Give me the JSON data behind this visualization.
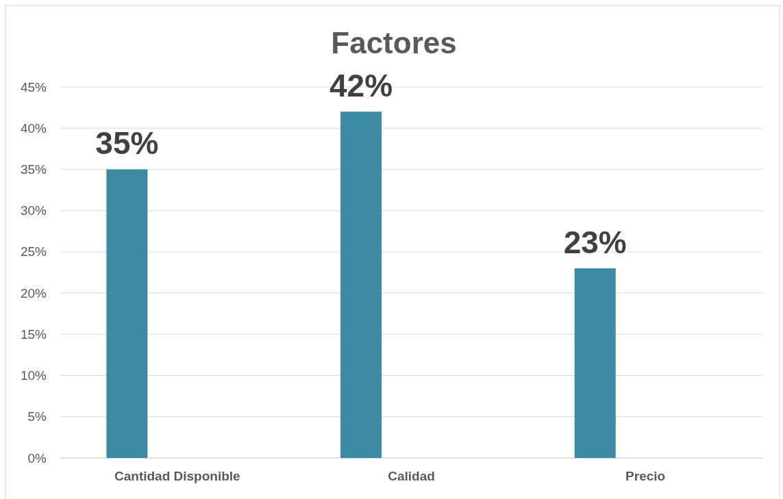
{
  "chart_data": {
    "type": "bar",
    "title": "Factores",
    "categories": [
      "Cantidad Disponible",
      "Calidad",
      "Precio"
    ],
    "values": [
      35,
      42,
      23
    ],
    "color": "#3b8ba5",
    "value_labels": [
      "35%",
      "42%",
      "23%"
    ],
    "ylim": [
      0,
      45
    ],
    "yticks": [
      {
        "value": 0,
        "label": "0%"
      },
      {
        "value": 5,
        "label": "5%"
      },
      {
        "value": 10,
        "label": "10%"
      },
      {
        "value": 15,
        "label": "15%"
      },
      {
        "value": 20,
        "label": "20%"
      },
      {
        "value": 25,
        "label": "25%"
      },
      {
        "value": 30,
        "label": "30%"
      },
      {
        "value": 35,
        "label": "35%"
      },
      {
        "value": 40,
        "label": "40%"
      },
      {
        "value": 45,
        "label": "45%"
      }
    ],
    "grid": "y"
  }
}
